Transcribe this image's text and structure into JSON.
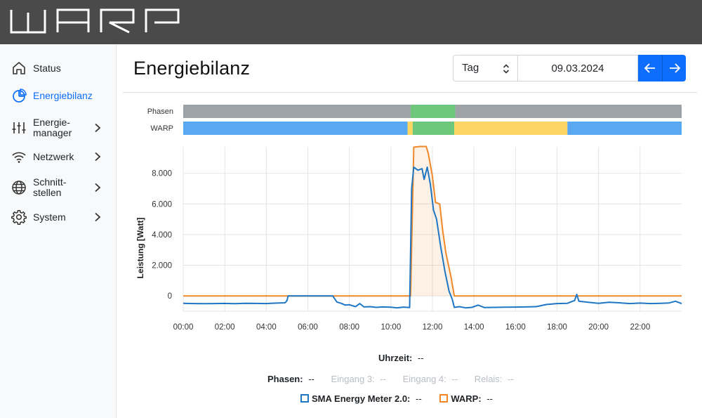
{
  "app": {
    "logo_text": "WARP"
  },
  "sidebar": {
    "items": [
      {
        "label": "Status",
        "icon": "home-icon",
        "active": false,
        "has_submenu": false
      },
      {
        "label": "Energiebilanz",
        "icon": "pie-chart-icon",
        "active": true,
        "has_submenu": false
      },
      {
        "label": "Energie-\nmanager",
        "icon": "sliders-icon",
        "active": false,
        "has_submenu": true
      },
      {
        "label": "Netzwerk",
        "icon": "wifi-icon",
        "active": false,
        "has_submenu": true
      },
      {
        "label": "Schnitt-\nstellen",
        "icon": "globe-icon",
        "active": false,
        "has_submenu": true
      },
      {
        "label": "System",
        "icon": "gear-icon",
        "active": false,
        "has_submenu": true
      }
    ]
  },
  "page": {
    "title": "Energiebilanz",
    "period_select": {
      "value": "Tag"
    },
    "date": "09.03.2024"
  },
  "colors": {
    "accent": "#0d6efd",
    "sma": "#1f77c4",
    "warp": "#f0882a",
    "band_gray": "#9ea3a8",
    "band_green": "#6dc77d",
    "band_blue": "#58a9f2",
    "band_yellow": "#fcd562"
  },
  "chart_data": {
    "type": "line",
    "ylabel": "Leistung [Watt]",
    "xlabel": "",
    "x_ticks": [
      "00:00",
      "02:00",
      "04:00",
      "06:00",
      "08:00",
      "10:00",
      "12:00",
      "14:00",
      "16:00",
      "18:00",
      "20:00",
      "22:00"
    ],
    "y_ticks": [
      "0",
      "2.000",
      "4.000",
      "6.000",
      "8.000"
    ],
    "ylim": [
      -1000,
      10000
    ],
    "xlim": [
      0,
      24
    ],
    "grid": true,
    "status_bands": [
      {
        "name": "Phasen",
        "segments": [
          {
            "from": 0,
            "to": 10.95,
            "color": "gray"
          },
          {
            "from": 10.95,
            "to": 13.1,
            "color": "green"
          },
          {
            "from": 13.1,
            "to": 24,
            "color": "gray"
          }
        ]
      },
      {
        "name": "WARP",
        "segments": [
          {
            "from": 0,
            "to": 10.8,
            "color": "blue"
          },
          {
            "from": 10.8,
            "to": 11.05,
            "color": "yellow"
          },
          {
            "from": 11.05,
            "to": 13.05,
            "color": "green"
          },
          {
            "from": 13.05,
            "to": 18.5,
            "color": "yellow"
          },
          {
            "from": 18.5,
            "to": 24,
            "color": "blue"
          }
        ]
      }
    ],
    "series": [
      {
        "name": "SMA Energy Meter 2.0",
        "points": [
          [
            0,
            -480
          ],
          [
            0.5,
            -500
          ],
          [
            1,
            -510
          ],
          [
            1.5,
            -500
          ],
          [
            2,
            -490
          ],
          [
            2.5,
            -510
          ],
          [
            3,
            -480
          ],
          [
            3.5,
            -490
          ],
          [
            4,
            -500
          ],
          [
            4.5,
            -470
          ],
          [
            4.9,
            -450
          ],
          [
            5.0,
            -300
          ],
          [
            5.05,
            0
          ],
          [
            7.2,
            0
          ],
          [
            7.4,
            -400
          ],
          [
            7.6,
            -480
          ],
          [
            7.8,
            -600
          ],
          [
            8,
            -580
          ],
          [
            8.3,
            -700
          ],
          [
            8.5,
            -500
          ],
          [
            8.7,
            -720
          ],
          [
            9,
            -700
          ],
          [
            9.3,
            -750
          ],
          [
            9.6,
            -720
          ],
          [
            10,
            -740
          ],
          [
            10.3,
            -780
          ],
          [
            10.6,
            -730
          ],
          [
            10.9,
            -760
          ],
          [
            11.0,
            7000
          ],
          [
            11.1,
            8400
          ],
          [
            11.3,
            8200
          ],
          [
            11.5,
            8300
          ],
          [
            11.6,
            7600
          ],
          [
            11.75,
            8400
          ],
          [
            11.9,
            7300
          ],
          [
            12.05,
            5600
          ],
          [
            12.2,
            5000
          ],
          [
            12.4,
            3200
          ],
          [
            12.6,
            1600
          ],
          [
            12.8,
            300
          ],
          [
            12.95,
            -200
          ],
          [
            13.05,
            -750
          ],
          [
            13.3,
            -700
          ],
          [
            13.6,
            -780
          ],
          [
            13.9,
            -750
          ],
          [
            14.2,
            -600
          ],
          [
            14.5,
            -760
          ],
          [
            15,
            -750
          ],
          [
            15.5,
            -740
          ],
          [
            16,
            -730
          ],
          [
            16.5,
            -720
          ],
          [
            17,
            -700
          ],
          [
            17.5,
            -560
          ],
          [
            18,
            -500
          ],
          [
            18.5,
            -480
          ],
          [
            18.85,
            -300
          ],
          [
            18.95,
            100
          ],
          [
            19.05,
            -350
          ],
          [
            19.5,
            -420
          ],
          [
            20,
            -480
          ],
          [
            20.5,
            -420
          ],
          [
            21,
            -450
          ],
          [
            21.5,
            -500
          ],
          [
            22,
            -470
          ],
          [
            22.5,
            -500
          ],
          [
            23,
            -480
          ],
          [
            23.4,
            -460
          ],
          [
            23.7,
            -350
          ],
          [
            24,
            -500
          ]
        ]
      },
      {
        "name": "WARP",
        "points": [
          [
            0,
            0
          ],
          [
            10.95,
            0
          ],
          [
            11.1,
            9700
          ],
          [
            11.4,
            9750
          ],
          [
            11.7,
            9750
          ],
          [
            11.8,
            9300
          ],
          [
            12.0,
            7800
          ],
          [
            12.15,
            6100
          ],
          [
            12.35,
            6000
          ],
          [
            12.5,
            4200
          ],
          [
            12.65,
            2800
          ],
          [
            12.9,
            1200
          ],
          [
            13.05,
            0
          ],
          [
            24,
            0
          ]
        ],
        "filled": true
      }
    ]
  },
  "readout": {
    "time_label": "Uhrzeit:",
    "time_value": "--",
    "phases_label": "Phasen:",
    "phases_value": "--",
    "input3_label": "Eingang 3:",
    "input3_value": "--",
    "input4_label": "Eingang 4:",
    "input4_value": "--",
    "relay_label": "Relais:",
    "relay_value": "--",
    "sma_label": "SMA Energy Meter 2.0:",
    "sma_value": "--",
    "warp_label": "WARP:",
    "warp_value": "--"
  }
}
